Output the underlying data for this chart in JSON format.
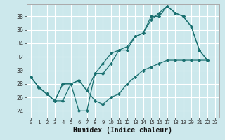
{
  "xlabel": "Humidex (Indice chaleur)",
  "ylabel": "",
  "background_color": "#cce8ec",
  "grid_color": "#ffffff",
  "line_color": "#1a7070",
  "xlim": [
    -0.5,
    23.5
  ],
  "ylim": [
    23.0,
    39.8
  ],
  "xticks": [
    0,
    1,
    2,
    3,
    4,
    5,
    6,
    7,
    8,
    9,
    10,
    11,
    12,
    13,
    14,
    15,
    16,
    17,
    18,
    19,
    20,
    21,
    22,
    23
  ],
  "yticks": [
    24,
    26,
    28,
    30,
    32,
    34,
    36,
    38
  ],
  "series": [
    [
      29.0,
      27.5,
      26.5,
      25.5,
      25.5,
      28.0,
      24.0,
      24.0,
      29.5,
      29.5,
      31.0,
      33.0,
      33.0,
      35.0,
      35.5,
      38.0,
      38.0,
      39.5,
      38.5,
      38.0,
      36.5,
      33.0,
      31.5
    ],
    [
      29.0,
      27.5,
      26.5,
      25.5,
      28.0,
      28.0,
      28.5,
      27.0,
      29.5,
      31.0,
      32.5,
      33.0,
      33.5,
      35.0,
      35.5,
      37.5,
      38.5,
      39.5,
      38.5,
      38.0,
      36.5,
      33.0,
      31.5
    ],
    [
      29.0,
      27.5,
      26.5,
      25.5,
      28.0,
      28.0,
      28.5,
      27.0,
      25.5,
      25.0,
      26.0,
      26.5,
      28.0,
      29.0,
      30.0,
      30.5,
      31.0,
      31.5,
      31.5,
      31.5,
      31.5,
      31.5,
      31.5
    ]
  ]
}
